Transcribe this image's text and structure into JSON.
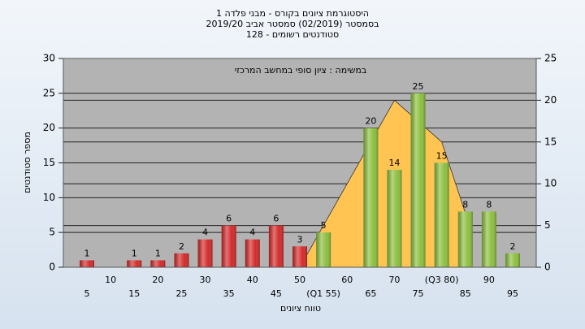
{
  "chart_data": {
    "type": "bar",
    "title": "היסטוגרמת ציונים בקורס - מבני פלדה 1",
    "subtitle": "בסמסטר  (02/2019)  סמסטר אביב 2019/20",
    "subtitle2": "סטודנטים רשומים - 128",
    "annotation": "במשימה : ציון סופי במחשב המרכזי",
    "x_label": "טווח ציונים",
    "y_label": "מספר סטודנטים",
    "categories": [
      "5",
      "10",
      "15",
      "20",
      "25",
      "30",
      "35",
      "40",
      "45",
      "50",
      "(Q1 55)",
      "60",
      "65",
      "70",
      "75",
      "(Q3 80)",
      "85",
      "90",
      "95"
    ],
    "series": [
      {
        "type": "bar",
        "values": [
          1,
          null,
          1,
          1,
          2,
          4,
          6,
          4,
          6,
          3,
          5,
          null,
          20,
          14,
          25,
          15,
          8,
          8,
          2
        ],
        "colors": [
          "#d42a2a",
          "#d42a2a",
          "#d42a2a",
          "#d42a2a",
          "#d42a2a",
          "#d42a2a",
          "#d42a2a",
          "#d42a2a",
          "#d42a2a",
          "#d42a2a",
          "#8cbf3f",
          "#8cbf3f",
          "#8cbf3f",
          "#8cbf3f",
          "#8cbf3f",
          "#8cbf3f",
          "#8cbf3f",
          "#8cbf3f",
          "#8cbf3f"
        ]
      },
      {
        "type": "area",
        "axis": "y2",
        "color": "#ffc451",
        "values": [
          null,
          null,
          null,
          null,
          null,
          null,
          null,
          null,
          null,
          0,
          5,
          10,
          15,
          20,
          17.5,
          15,
          6.5,
          null,
          null
        ]
      }
    ],
    "ylim": [
      0,
      30
    ],
    "yticks": [
      0,
      5,
      10,
      15,
      20,
      25,
      30
    ],
    "y2lim": [
      0,
      25
    ],
    "y2ticks": [
      0,
      5,
      10,
      15,
      20,
      25
    ],
    "grid": true
  }
}
